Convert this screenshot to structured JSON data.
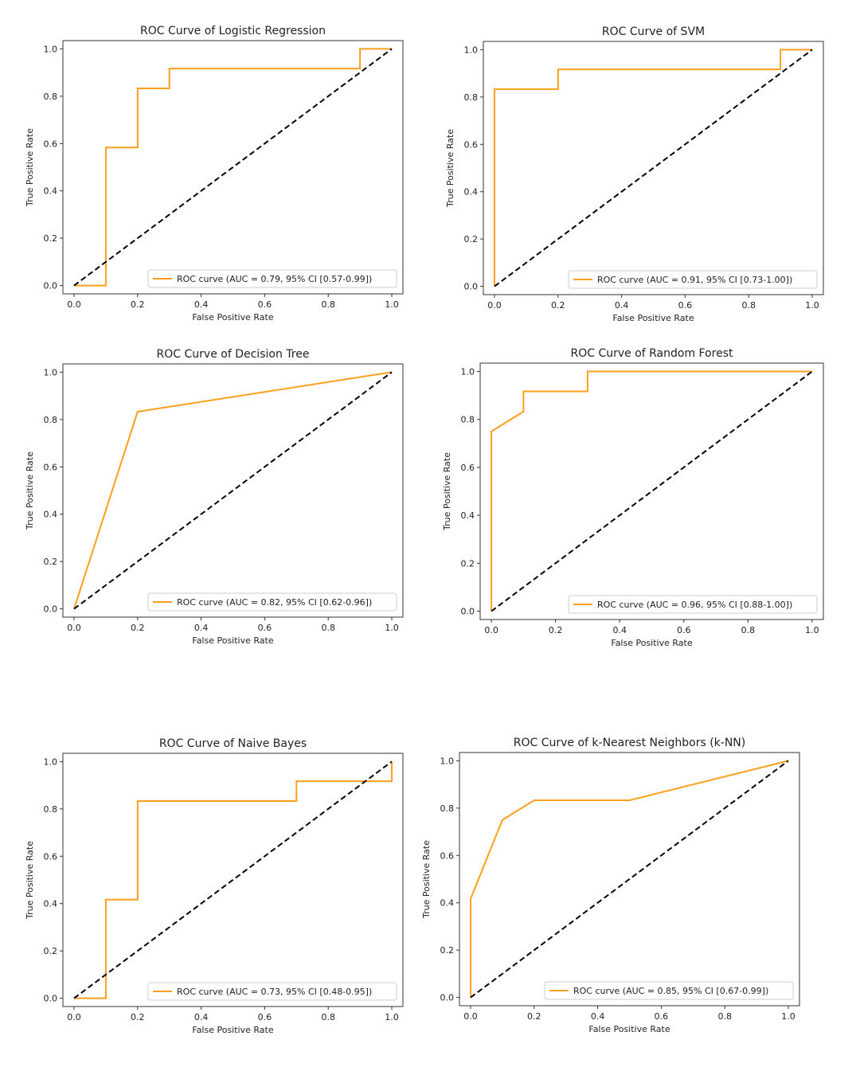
{
  "chart_data": [
    {
      "type": "line",
      "title": "ROC Curve of Logistic Regression",
      "xlabel": "False Positive Rate",
      "ylabel": "True Positive Rate",
      "xlim": [
        0.0,
        1.0
      ],
      "ylim": [
        0.0,
        1.0
      ],
      "xticks": [
        "0.0",
        "0.2",
        "0.4",
        "0.6",
        "0.8",
        "1.0"
      ],
      "yticks": [
        "0.0",
        "0.2",
        "0.4",
        "0.6",
        "0.8",
        "1.0"
      ],
      "grid": false,
      "legend_position": "lower-right",
      "series": [
        {
          "name": "ROC curve (AUC = 0.79, 95% CI [0.57-0.99])",
          "color": "#ff9f1c",
          "x": [
            0.0,
            0.1,
            0.1,
            0.2,
            0.2,
            0.3,
            0.3,
            0.9,
            0.9,
            1.0
          ],
          "y": [
            0.0,
            0.0,
            0.583,
            0.583,
            0.833,
            0.833,
            0.917,
            0.917,
            1.0,
            1.0
          ]
        },
        {
          "color": "#000000",
          "style": "dashed",
          "x": [
            0.0,
            1.0
          ],
          "y": [
            0.0,
            1.0
          ]
        }
      ]
    },
    {
      "type": "line",
      "title": "ROC Curve of SVM",
      "xlabel": "False Positive Rate",
      "ylabel": "True Positive Rate",
      "xlim": [
        0.0,
        1.0
      ],
      "ylim": [
        0.0,
        1.0
      ],
      "xticks": [
        "0.0",
        "0.2",
        "0.4",
        "0.6",
        "0.8",
        "1.0"
      ],
      "yticks": [
        "0.0",
        "0.2",
        "0.4",
        "0.6",
        "0.8",
        "1.0"
      ],
      "grid": false,
      "legend_position": "lower-right",
      "series": [
        {
          "name": "ROC curve (AUC = 0.91, 95% CI [0.73-1.00])",
          "color": "#ff9f1c",
          "x": [
            0.0,
            0.0,
            0.2,
            0.2,
            0.9,
            0.9,
            1.0
          ],
          "y": [
            0.0,
            0.833,
            0.833,
            0.917,
            0.917,
            1.0,
            1.0
          ]
        },
        {
          "color": "#000000",
          "style": "dashed",
          "x": [
            0.0,
            1.0
          ],
          "y": [
            0.0,
            1.0
          ]
        }
      ]
    },
    {
      "type": "line",
      "title": "ROC Curve of Decision Tree",
      "xlabel": "False Positive Rate",
      "ylabel": "True Positive Rate",
      "xlim": [
        0.0,
        1.0
      ],
      "ylim": [
        0.0,
        1.0
      ],
      "xticks": [
        "0.0",
        "0.2",
        "0.4",
        "0.6",
        "0.8",
        "1.0"
      ],
      "yticks": [
        "0.0",
        "0.2",
        "0.4",
        "0.6",
        "0.8",
        "1.0"
      ],
      "grid": false,
      "legend_position": "lower-right",
      "series": [
        {
          "name": "ROC curve (AUC = 0.82, 95% CI [0.62-0.96])",
          "color": "#ff9f1c",
          "x": [
            0.0,
            0.2,
            1.0
          ],
          "y": [
            0.0,
            0.833,
            1.0
          ]
        },
        {
          "color": "#000000",
          "style": "dashed",
          "x": [
            0.0,
            1.0
          ],
          "y": [
            0.0,
            1.0
          ]
        }
      ]
    },
    {
      "type": "line",
      "title": "ROC Curve of Random Forest",
      "xlabel": "False Positive Rate",
      "ylabel": "True Positive Rate",
      "xlim": [
        0.0,
        1.0
      ],
      "ylim": [
        0.0,
        1.0
      ],
      "xticks": [
        "0.0",
        "0.2",
        "0.4",
        "0.6",
        "0.8",
        "1.0"
      ],
      "yticks": [
        "0.0",
        "0.2",
        "0.4",
        "0.6",
        "0.8",
        "1.0"
      ],
      "grid": false,
      "legend_position": "lower-right",
      "series": [
        {
          "name": "ROC curve (AUC = 0.96, 95% CI [0.88-1.00])",
          "color": "#ff9f1c",
          "x": [
            0.0,
            0.0,
            0.1,
            0.1,
            0.3,
            0.3,
            1.0
          ],
          "y": [
            0.0,
            0.75,
            0.833,
            0.917,
            0.917,
            1.0,
            1.0
          ]
        },
        {
          "color": "#000000",
          "style": "dashed",
          "x": [
            0.0,
            1.0
          ],
          "y": [
            0.0,
            1.0
          ]
        }
      ]
    },
    {
      "type": "line",
      "title": "ROC Curve of Naive Bayes",
      "xlabel": "False Positive Rate",
      "ylabel": "True Positive Rate",
      "xlim": [
        0.0,
        1.0
      ],
      "ylim": [
        0.0,
        1.0
      ],
      "xticks": [
        "0.0",
        "0.2",
        "0.4",
        "0.6",
        "0.8",
        "1.0"
      ],
      "yticks": [
        "0.0",
        "0.2",
        "0.4",
        "0.6",
        "0.8",
        "1.0"
      ],
      "grid": false,
      "legend_position": "lower-right",
      "series": [
        {
          "name": "ROC curve (AUC = 0.73, 95% CI [0.48-0.95])",
          "color": "#ff9f1c",
          "x": [
            0.0,
            0.1,
            0.1,
            0.2,
            0.2,
            0.7,
            0.7,
            1.0,
            1.0
          ],
          "y": [
            0.0,
            0.0,
            0.417,
            0.417,
            0.833,
            0.833,
            0.917,
            0.917,
            1.0
          ]
        },
        {
          "color": "#000000",
          "style": "dashed",
          "x": [
            0.0,
            1.0
          ],
          "y": [
            0.0,
            1.0
          ]
        }
      ]
    },
    {
      "type": "line",
      "title": "ROC Curve of k-Nearest Neighbors (k-NN)",
      "xlabel": "False Positive Rate",
      "ylabel": "True Positive Rate",
      "xlim": [
        0.0,
        1.0
      ],
      "ylim": [
        0.0,
        1.0
      ],
      "xticks": [
        "0.0",
        "0.2",
        "0.4",
        "0.6",
        "0.8",
        "1.0"
      ],
      "yticks": [
        "0.0",
        "0.2",
        "0.4",
        "0.6",
        "0.8",
        "1.0"
      ],
      "grid": false,
      "legend_position": "lower-right",
      "series": [
        {
          "name": "ROC curve (AUC = 0.85, 95% CI [0.67-0.99])",
          "color": "#ff9f1c",
          "x": [
            0.0,
            0.0,
            0.1,
            0.2,
            0.5,
            1.0
          ],
          "y": [
            0.0,
            0.417,
            0.75,
            0.833,
            0.833,
            1.0
          ]
        },
        {
          "color": "#000000",
          "style": "dashed",
          "x": [
            0.0,
            1.0
          ],
          "y": [
            0.0,
            1.0
          ]
        }
      ]
    }
  ]
}
